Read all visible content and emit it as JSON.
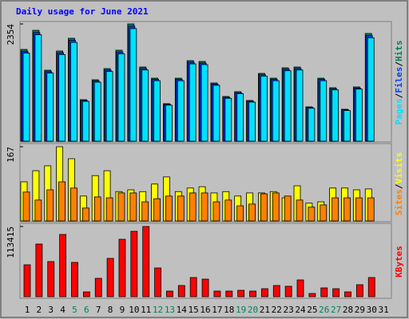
{
  "chart_data": [
    {
      "type": "bar",
      "title": "Daily usage for June 2021",
      "ylim": [
        0,
        2354
      ],
      "yticks": [
        2354
      ],
      "legend_separator": "/",
      "series": [
        {
          "name": "Hits",
          "color": "#00805c",
          "values": [
            1842,
            2226,
            1425,
            1810,
            2066,
            833,
            1233,
            1457,
            1826,
            2354,
            1489,
            1265,
            753,
            1265,
            1617,
            1601,
            1169,
            897,
            993,
            817,
            1361,
            1265,
            1473,
            1489,
            689,
            1265,
            1073,
            641,
            1089,
            2162,
            0
          ]
        },
        {
          "name": "Files",
          "color": "#0040ff",
          "values": [
            1805,
            2181,
            1397,
            1774,
            2025,
            816,
            1208,
            1428,
            1789,
            2307,
            1459,
            1240,
            738,
            1240,
            1585,
            1569,
            1146,
            879,
            973,
            801,
            1334,
            1240,
            1444,
            1459,
            675,
            1240,
            1052,
            628,
            1067,
            2119,
            0
          ]
        },
        {
          "name": "Pages",
          "color": "#00e0ff",
          "values": [
            1768,
            2137,
            1368,
            1738,
            1983,
            800,
            1184,
            1399,
            1753,
            2260,
            1429,
            1214,
            723,
            1214,
            1552,
            1537,
            1122,
            861,
            953,
            784,
            1307,
            1214,
            1414,
            1429,
            661,
            1214,
            1030,
            615,
            1045,
            2076,
            0
          ]
        }
      ]
    },
    {
      "type": "bar",
      "ylim": [
        0,
        167
      ],
      "yticks": [
        167
      ],
      "legend_separator": "/",
      "series": [
        {
          "name": "Visits",
          "color": "#ffff00",
          "values": [
            88,
            113,
            124,
            167,
            140,
            56,
            102,
            113,
            66,
            70,
            66,
            83,
            99,
            66,
            74,
            77,
            63,
            66,
            56,
            63,
            63,
            66,
            52,
            79,
            40,
            43,
            74,
            74,
            70,
            72,
            0
          ]
        },
        {
          "name": "Sites",
          "color": "#ff8000",
          "values": [
            65,
            47,
            70,
            88,
            74,
            29,
            54,
            52,
            63,
            63,
            43,
            50,
            56,
            56,
            63,
            63,
            43,
            47,
            34,
            38,
            61,
            63,
            56,
            47,
            31,
            36,
            52,
            52,
            52,
            52,
            0
          ]
        }
      ]
    },
    {
      "type": "bar",
      "ylim": [
        0,
        113415
      ],
      "yticks": [
        113415
      ],
      "categories": [
        "1",
        "2",
        "3",
        "4",
        "5",
        "6",
        "7",
        "8",
        "9",
        "10",
        "11",
        "12",
        "13",
        "14",
        "15",
        "16",
        "17",
        "18",
        "19",
        "20",
        "21",
        "22",
        "23",
        "24",
        "25",
        "26",
        "27",
        "28",
        "29",
        "30",
        "31"
      ],
      "category_colors": [
        "#000000",
        "#000000",
        "#000000",
        "#000000",
        "#00805c",
        "#00805c",
        "#000000",
        "#000000",
        "#000000",
        "#000000",
        "#000000",
        "#00805c",
        "#00805c",
        "#000000",
        "#000000",
        "#000000",
        "#000000",
        "#000000",
        "#00805c",
        "#00805c",
        "#000000",
        "#000000",
        "#000000",
        "#000000",
        "#000000",
        "#00805c",
        "#00805c",
        "#000000",
        "#000000",
        "#000000",
        "#000000"
      ],
      "series": [
        {
          "name": "KBytes",
          "color": "#ff0000",
          "values": [
            51552,
            85061,
            56707,
            100527,
            55419,
            7733,
            29643,
            61863,
            92794,
            105682,
            113415,
            46397,
            9022,
            18043,
            30931,
            28354,
            9022,
            9022,
            10310,
            9022,
            12888,
            18043,
            16755,
            27065,
            5155,
            14177,
            12888,
            7733,
            19332,
            30931,
            0
          ]
        }
      ]
    }
  ]
}
